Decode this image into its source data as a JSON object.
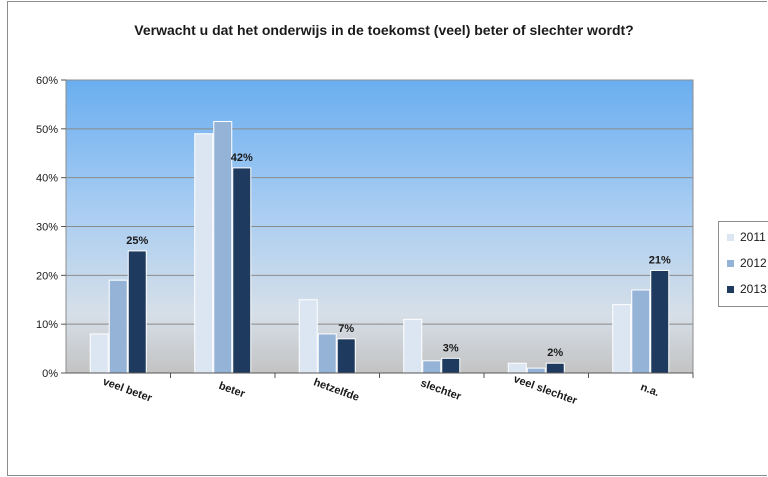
{
  "chart_data": {
    "type": "bar",
    "title": "Verwacht u dat het onderwijs in de toekomst (veel) beter of slechter wordt?",
    "xlabel": "",
    "ylabel": "",
    "categories": [
      "veel beter",
      "beter",
      "hetzelfde",
      "slechter",
      "veel slechter",
      "n.a."
    ],
    "series": [
      {
        "name": "2011",
        "color": "#dce6f2",
        "values": [
          8,
          49,
          15,
          11,
          2,
          14
        ]
      },
      {
        "name": "2012",
        "color": "#95b3d7",
        "values": [
          19,
          51.5,
          8,
          2.5,
          1,
          17
        ]
      },
      {
        "name": "2013",
        "color": "#1f3a5f",
        "values": [
          25,
          42,
          7,
          3,
          2,
          21
        ]
      }
    ],
    "data_label_series": "2013",
    "data_labels": [
      "25%",
      "42%",
      "7%",
      "3%",
      "2%",
      "21%"
    ],
    "y_ticks": [
      "0%",
      "10%",
      "20%",
      "30%",
      "40%",
      "50%",
      "60%"
    ],
    "ylim": [
      0,
      60
    ],
    "grid": true,
    "legend_position": "right"
  }
}
